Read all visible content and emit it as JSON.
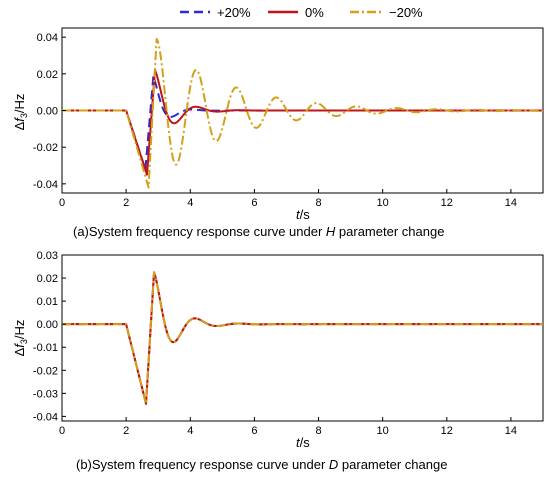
{
  "legend": {
    "placement": "top-center",
    "entries": [
      {
        "label": "+20%",
        "color": "#2b2bd6",
        "dash": "dashed"
      },
      {
        "label": "0%",
        "color": "#c0141a",
        "dash": "solid"
      },
      {
        "label": "−20%",
        "color": "#d4a017",
        "dash": "dashdot"
      }
    ]
  },
  "chart_data": [
    {
      "type": "line",
      "title": "",
      "ylabel_parts": {
        "delta": "Δ",
        "var": "f",
        "sub": "3",
        "unit": "/Hz"
      },
      "xlabel_parts": {
        "var": "t",
        "unit": "/s"
      },
      "caption_parts": {
        "pre": "(a)System frequency response curve under ",
        "var": "H",
        "post": " parameter change"
      },
      "xlim": [
        0,
        15
      ],
      "ylim": [
        -0.045,
        0.045
      ],
      "xticks": [
        "0",
        "2",
        "4",
        "6",
        "8",
        "10",
        "12",
        "14"
      ],
      "xtick_values": [
        0,
        2,
        4,
        6,
        8,
        10,
        12,
        14
      ],
      "yticks": [
        "-0.04",
        "-0.02",
        "0.00",
        "0.02",
        "0.04"
      ],
      "ytick_values": [
        -0.04,
        -0.02,
        0.0,
        0.02,
        0.04
      ],
      "series": [
        {
          "name": "+20%",
          "model": {
            "t0": 2.0,
            "tmin": 2.6,
            "ymin": -0.032,
            "tpeak": 2.85,
            "ypeak": 0.019,
            "period": 1.3,
            "tau": 0.35,
            "damp": 0.92
          }
        },
        {
          "name": "0%",
          "model": {
            "t0": 2.0,
            "tmin": 2.65,
            "ymin": -0.035,
            "tpeak": 2.9,
            "ypeak": 0.022,
            "period": 1.35,
            "tau": 0.55,
            "damp": 0.6
          }
        },
        {
          "name": "−20%",
          "model": {
            "t0": 2.0,
            "tmin": 2.7,
            "ymin": -0.042,
            "tpeak": 2.95,
            "ypeak": 0.039,
            "period": 1.25,
            "tau": 2.2,
            "damp": 0.0
          }
        }
      ]
    },
    {
      "type": "line",
      "title": "",
      "ylabel_parts": {
        "delta": "Δ",
        "var": "f",
        "sub": "3",
        "unit": "/Hz"
      },
      "xlabel_parts": {
        "var": "t",
        "unit": "/s"
      },
      "caption_parts": {
        "pre": "(b)System frequency response curve under ",
        "var": "D",
        "post": " parameter change"
      },
      "xlim": [
        0,
        15
      ],
      "ylim": [
        -0.042,
        0.03
      ],
      "xticks": [
        "0",
        "2",
        "4",
        "6",
        "8",
        "10",
        "12",
        "14"
      ],
      "xtick_values": [
        0,
        2,
        4,
        6,
        8,
        10,
        12,
        14
      ],
      "yticks": [
        "-0.04",
        "-0.03",
        "-0.02",
        "-0.01",
        "0.00",
        "0.01",
        "0.02",
        "0.03"
      ],
      "ytick_values": [
        -0.04,
        -0.03,
        -0.02,
        -0.01,
        0.0,
        0.01,
        0.02,
        0.03
      ],
      "series": [
        {
          "name": "+20%",
          "model": {
            "t0": 2.0,
            "tmin": 2.62,
            "ymin": -0.0345,
            "tpeak": 2.87,
            "ypeak": 0.0225,
            "period": 1.35,
            "tau": 0.6,
            "damp": 0.6
          }
        },
        {
          "name": "0%",
          "model": {
            "t0": 2.0,
            "tmin": 2.62,
            "ymin": -0.0345,
            "tpeak": 2.87,
            "ypeak": 0.0225,
            "period": 1.35,
            "tau": 0.6,
            "damp": 0.6
          }
        },
        {
          "name": "−20%",
          "model": {
            "t0": 2.0,
            "tmin": 2.62,
            "ymin": -0.0345,
            "tpeak": 2.87,
            "ypeak": 0.0225,
            "period": 1.35,
            "tau": 0.6,
            "damp": 0.6
          }
        }
      ]
    }
  ]
}
